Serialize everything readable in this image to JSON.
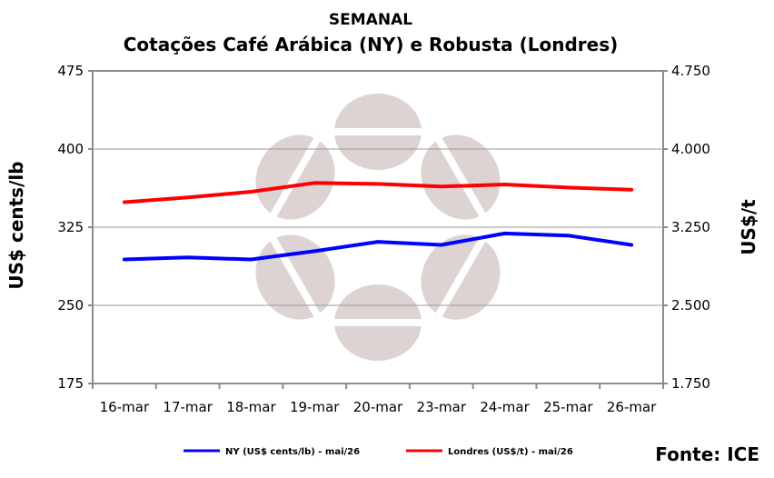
{
  "header": {
    "title": "SEMANAL",
    "subtitle": "Cotações Café Arábica (NY) e Robusta (Londres)"
  },
  "footer": {
    "source": "Fonte: ICE"
  },
  "chart_data": {
    "type": "line",
    "categories": [
      "16-mar",
      "17-mar",
      "18-mar",
      "19-mar",
      "20-mar",
      "23-mar",
      "24-mar",
      "25-mar",
      "26-mar"
    ],
    "series": [
      {
        "name": "NY (US$ cents/lb) - mai/26",
        "axis": "left",
        "color": "#0000ff",
        "values": [
          294,
          296,
          294,
          302,
          311,
          308,
          319,
          317,
          308
        ]
      },
      {
        "name": "Londres (US$/t) - mai/26",
        "axis": "right",
        "color": "#ff0000",
        "values": [
          3490,
          3535,
          3590,
          3675,
          3665,
          3640,
          3660,
          3630,
          3610
        ]
      }
    ],
    "ylabel_left": "US$ cents/lb",
    "ylabel_right": "US$/t",
    "ylim_left": [
      175,
      475
    ],
    "ylim_right": [
      1750,
      4750
    ],
    "yticks_left": [
      "475",
      "400",
      "325",
      "250",
      "175"
    ],
    "yticks_right": [
      "4.750",
      "4.000",
      "3.250",
      "2.500",
      "1.750"
    ],
    "grid": "horizontal",
    "legend_position": "bottom"
  }
}
